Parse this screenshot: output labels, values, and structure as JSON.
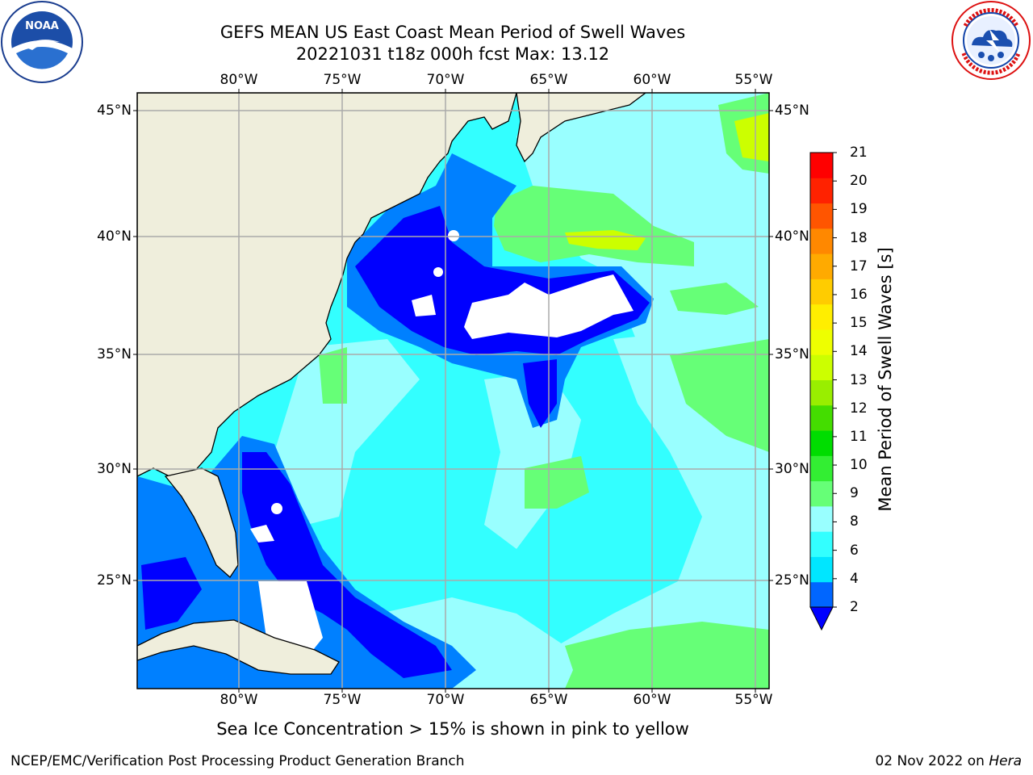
{
  "title": {
    "line1": "GEFS MEAN US East Coast Mean Period of Swell Waves",
    "line2": "20221031 t18z 000h fcst   Max: 13.12"
  },
  "map": {
    "lon_labels": [
      "80°W",
      "75°W",
      "70°W",
      "65°W",
      "60°W",
      "55°W"
    ],
    "lat_labels": [
      "45°N",
      "40°N",
      "35°N",
      "30°N",
      "25°N"
    ],
    "colors": {
      "land": "#efeedc",
      "ocean_cyan": "#99ffff",
      "ocean_mid": "#33ffff",
      "ocean_blue": "#0080ff",
      "ocean_deep": "#0000ff",
      "green_light": "#66ff77",
      "green": "#22dd22",
      "yellowgreen": "#ccff00",
      "gridline": "#aaaaaa"
    }
  },
  "colorbar": {
    "label": "Mean Period of Swell Waves [s]",
    "ticks": [
      "21",
      "20",
      "19",
      "18",
      "17",
      "16",
      "15",
      "14",
      "13",
      "12",
      "11",
      "10",
      "9",
      "8",
      "6",
      "4",
      "2"
    ],
    "colors_bottom_to_top": [
      "#0066ff",
      "#00e6ff",
      "#33ffff",
      "#99ffff",
      "#66ff77",
      "#33ee33",
      "#00dd00",
      "#44dd00",
      "#99ee00",
      "#ccff00",
      "#eeff00",
      "#ffee00",
      "#ffcc00",
      "#ffaa00",
      "#ff8800",
      "#ff5500",
      "#ff2200",
      "#ff0000"
    ],
    "extend_color": "#0000ff"
  },
  "note": "Sea Ice Concentration > 15% is shown in pink to yellow",
  "footer": {
    "left": "NCEP/EMC/Verification Post Processing Product Generation Branch",
    "right_date": "02 Nov 2022 on",
    "right_host": "Hera"
  },
  "logos": {
    "noaa_text": "NOAA",
    "noaa_icon": "noaa-logo",
    "nws_icon": "nws-logo"
  }
}
